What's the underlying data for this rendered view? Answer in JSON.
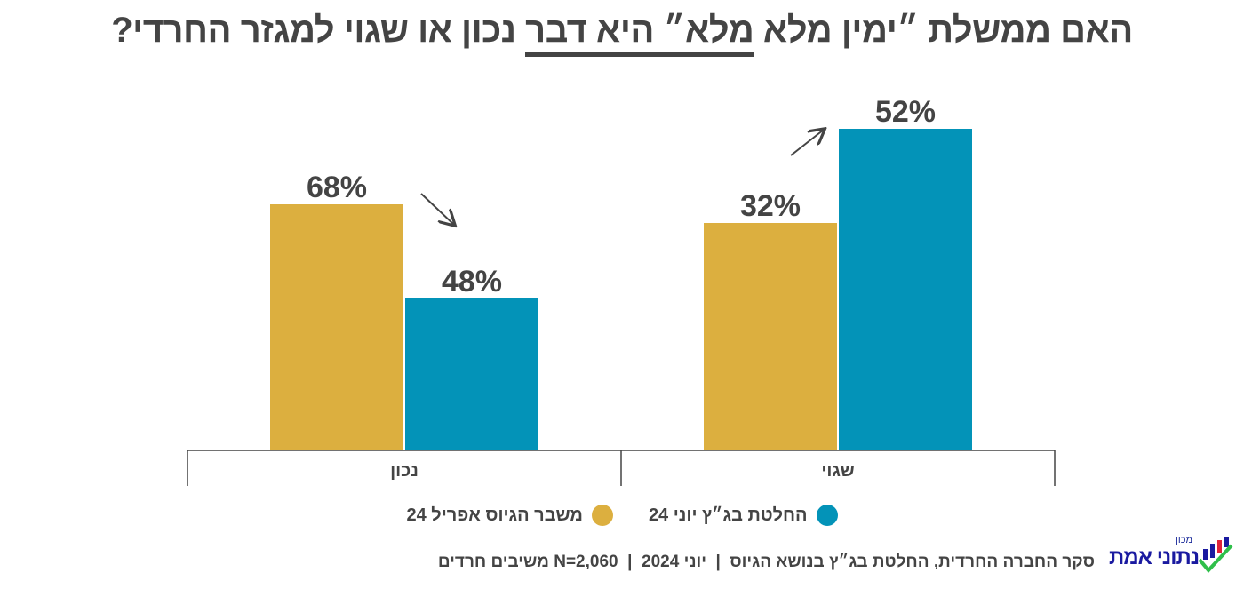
{
  "title": {
    "before": "האם ממשלת ״ימין מלא ",
    "underlined": "מלא״ היא דבר",
    "after": " נכון או שגוי למגזר החרדי?"
  },
  "chart_data": {
    "type": "bar",
    "categories": [
      "שגוי",
      "נכון"
    ],
    "series": [
      {
        "name": "משבר הגיוס אפריל 24",
        "color": "#DCAF3F",
        "values": [
          32,
          68
        ]
      },
      {
        "name": "החלטת בג״ץ יוני 24",
        "color": "#0393B8",
        "values": [
          52,
          48
        ]
      }
    ],
    "data_labels": {
      "series0": [
        "32%",
        "68%"
      ],
      "series1": [
        "52%",
        "48%"
      ]
    },
    "trend_arrows": [
      "up",
      "down"
    ],
    "legend_position": "bottom",
    "grid": false
  },
  "footer": {
    "text": "סקר החברה החרדית, החלטת בג״ץ בנושא הגיוס  |  יוני 2024  |  N=2,060 משיבים חרדים"
  },
  "logo": {
    "small": "מכון",
    "big": "נתוני אמת",
    "colors": [
      "#1a1aa0",
      "#e0223a",
      "#2fbf4a"
    ]
  }
}
